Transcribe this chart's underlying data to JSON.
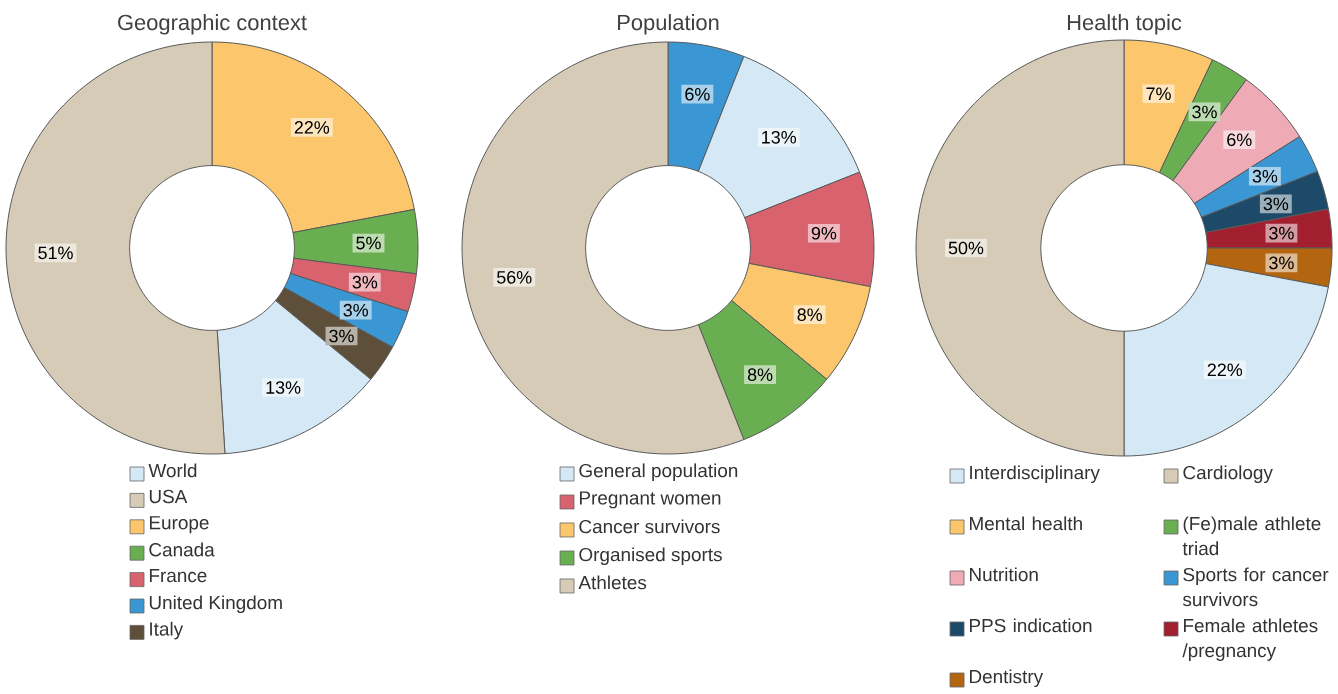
{
  "chart_data": [
    {
      "type": "donut",
      "title": "Geographic context",
      "categories": [
        "World",
        "USA",
        "Europe",
        "Canada",
        "France",
        "United Kingdom",
        "Italy"
      ],
      "values": [
        13,
        51,
        22,
        5,
        3,
        3,
        3
      ],
      "colors": [
        "#d5e8f5",
        "#d5cbb6",
        "#fbc66c",
        "#6aae52",
        "#d9626f",
        "#3b97d3",
        "#5e4f3b"
      ],
      "value_labels": [
        "13%",
        "51%",
        "22%",
        "5%",
        "3%",
        "3%",
        "3%"
      ],
      "legend": "bottom"
    },
    {
      "type": "donut",
      "title": "Population",
      "categories": [
        null,
        "General population",
        "Pregnant women",
        "Cancer survivors",
        "Organised sports",
        "Athletes"
      ],
      "values": [
        6,
        13,
        9,
        8,
        8,
        56
      ],
      "colors": [
        "#3b97d3",
        "#d5e8f5",
        "#d9626f",
        "#fbc66c",
        "#6aae52",
        "#d5cbb6"
      ],
      "value_labels": [
        "6%",
        "13%",
        "9%",
        "8%",
        "8%",
        "56%"
      ],
      "legend": "bottom"
    },
    {
      "type": "donut",
      "title": "Health topic",
      "categories": [
        "Interdisciplinary",
        "Cardiology",
        "Mental health",
        "(Fe)male athlete triad",
        "Nutrition",
        "Sports for cancer survivors",
        "PPS indication",
        "Female athletes /pregnancy",
        "Dentistry"
      ],
      "values": [
        22,
        50,
        7,
        3,
        6,
        3,
        3,
        3,
        3
      ],
      "colors": [
        "#d5e8f5",
        "#d5cbb6",
        "#fbc66c",
        "#6aae52",
        "#eeaab5",
        "#3b97d3",
        "#1d4a68",
        "#a11f2f",
        "#b4650f"
      ],
      "value_labels": [
        "22%",
        "50%",
        "7%",
        "3%",
        "6%",
        "3%",
        "3%",
        "3%",
        "3%"
      ],
      "legend": "bottom"
    }
  ]
}
